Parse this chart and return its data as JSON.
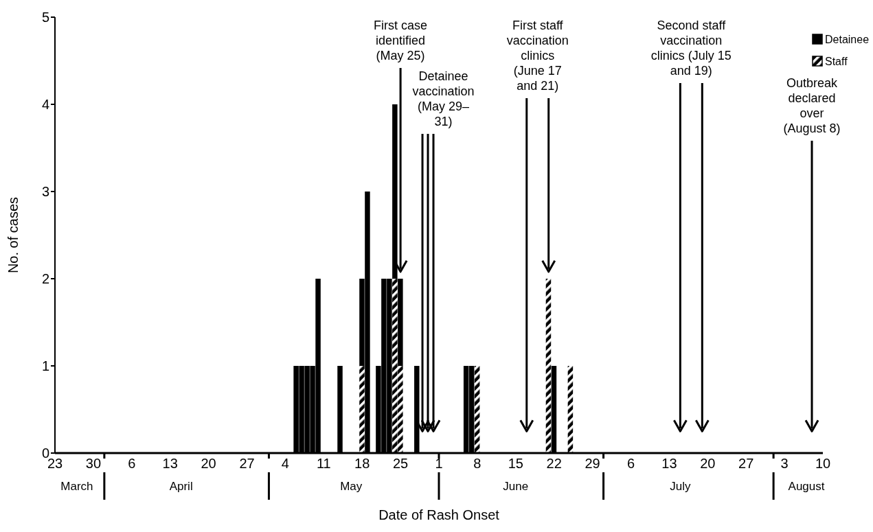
{
  "chart_data": {
    "type": "bar",
    "stacked": true,
    "xlabel": "Date of Rash Onset",
    "ylabel": "No. of cases",
    "legend": "top right",
    "x": [
      "--05-06",
      "--05-07",
      "--05-08",
      "--05-09",
      "--05-10",
      "--05-14",
      "--05-18",
      "--05-19",
      "--05-21",
      "--05-22",
      "--05-23",
      "--05-24",
      "--05-25",
      "--05-28",
      "--06-06",
      "--06-07",
      "--06-08",
      "--06-21",
      "--06-22",
      "--06-25"
    ],
    "series": [
      {
        "name": "Staff",
        "color": "#000000",
        "values": [
          null,
          null,
          null,
          null,
          null,
          null,
          1,
          null,
          null,
          null,
          null,
          2,
          1,
          null,
          null,
          null,
          1,
          2,
          null,
          1
        ]
      },
      {
        "name": "Detainee",
        "color": "#000000",
        "values": [
          1,
          1,
          1,
          1,
          2,
          1,
          1,
          3,
          1,
          2,
          2,
          2,
          1,
          1,
          1,
          1,
          null,
          null,
          1,
          null
        ]
      }
    ],
    "xlim": [
      "--03-23",
      "--08-10"
    ],
    "xticks": [
      {
        "value": "--03-23",
        "label": "23"
      },
      {
        "value": "--03-30",
        "label": "30"
      },
      {
        "value": "--04-06",
        "label": "6"
      },
      {
        "value": "--04-13",
        "label": "13"
      },
      {
        "value": "--04-20",
        "label": "20"
      },
      {
        "value": "--04-27",
        "label": "27"
      },
      {
        "value": "--05-04",
        "label": "4"
      },
      {
        "value": "--05-11",
        "label": "11"
      },
      {
        "value": "--05-18",
        "label": "18"
      },
      {
        "value": "--05-25",
        "label": "25"
      },
      {
        "value": "--06-01",
        "label": "1"
      },
      {
        "value": "--06-08",
        "label": "8"
      },
      {
        "value": "--06-15",
        "label": "15"
      },
      {
        "value": "--06-22",
        "label": "22"
      },
      {
        "value": "--06-29",
        "label": "29"
      },
      {
        "value": "--07-06",
        "label": "6"
      },
      {
        "value": "--07-13",
        "label": "13"
      },
      {
        "value": "--07-20",
        "label": "20"
      },
      {
        "value": "--07-27",
        "label": "27"
      },
      {
        "value": "--08-03",
        "label": "3"
      },
      {
        "value": "--08-10",
        "label": "10"
      }
    ],
    "ylim": [
      0,
      5
    ],
    "yticks": [
      0,
      1,
      2,
      3,
      4,
      5
    ],
    "x2lim": [
      "--03-23",
      "--08-10"
    ],
    "x2ticks": [
      {
        "value": "--03-27",
        "label": "March"
      },
      {
        "value": "--04-01",
        "label": null
      },
      {
        "value": "--04-15",
        "label": "April"
      },
      {
        "value": "--05-01",
        "label": null
      },
      {
        "value": "--05-16",
        "label": "May"
      },
      {
        "value": "--06-01",
        "label": null
      },
      {
        "value": "--06-15",
        "label": "June"
      },
      {
        "value": "--07-01",
        "label": null
      },
      {
        "value": "--07-15",
        "label": "July"
      },
      {
        "value": "--08-01",
        "label": null
      },
      {
        "value": "--08-07",
        "label": "August"
      }
    ],
    "ref_lines": [
      {
        "axis": "x",
        "value": "--05-25",
        "label": "First case\nidentified\n(May 25)"
      },
      {
        "axis": "x",
        "value": "--05-29",
        "label": "Detainee\nvaccination\n(May 29–\n31)"
      },
      {
        "axis": "x",
        "value": "--05-30",
        "label": null
      },
      {
        "axis": "x",
        "value": "--05-31",
        "label": null
      },
      {
        "axis": "x",
        "value": "--06-17",
        "label": "First staff\nvaccination\nclinics\n(June 17\nand 21)"
      },
      {
        "axis": "x",
        "value": "--06-21",
        "label": null
      },
      {
        "axis": "x",
        "value": "--07-15",
        "label": "Second staff\nvaccination\nclinics (July 15\nand 19)"
      },
      {
        "axis": "x",
        "value": "--07-19",
        "label": null
      },
      {
        "axis": "x",
        "value": "--08-08",
        "label": "Outbreak\ndeclared\nover\n(August 8)"
      }
    ]
  }
}
